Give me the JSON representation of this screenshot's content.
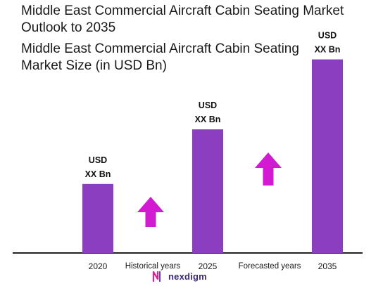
{
  "title": "Middle East Commercial Aircraft Cabin Seating Market Outlook to 2035",
  "subtitle": "Middle East Commercial Aircraft Cabin Seating Market Size (in USD Bn)",
  "brand": {
    "name": "nexdigm",
    "logo_icon": "nexdigm-logo-icon"
  },
  "colors": {
    "bar": "#8b3fc0",
    "arrow": "#d21ad2",
    "axis": "#222222",
    "text": "#1a1a1a"
  },
  "chart_data": {
    "type": "bar",
    "categories": [
      "2020",
      "2025",
      "2035"
    ],
    "values": [
      7.2,
      12.9,
      20.2
    ],
    "value_labels": [
      [
        "USD",
        "XX Bn"
      ],
      [
        "USD",
        "XX Bn"
      ],
      [
        "USD",
        "XX Bn"
      ]
    ],
    "ylim": [
      0,
      22
    ],
    "period_labels": [
      "Historical years",
      "Forecasted years"
    ],
    "trend_icons": [
      "up-arrow-icon",
      "up-arrow-icon"
    ],
    "grid": false,
    "legend": "none"
  }
}
